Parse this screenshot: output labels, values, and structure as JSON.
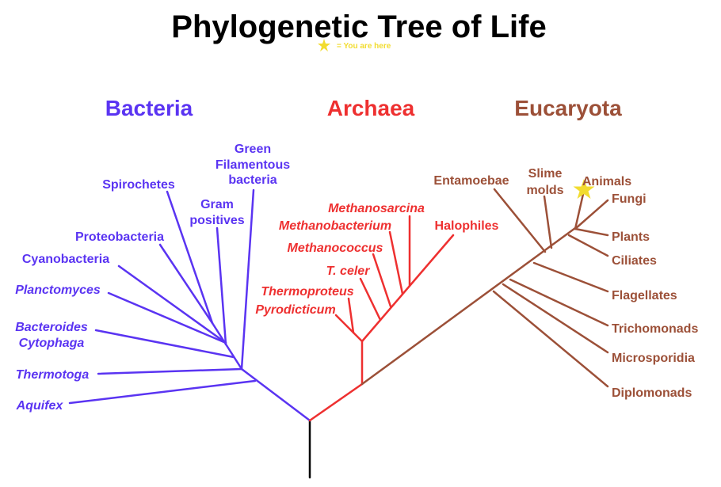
{
  "title": "Phylogenetic Tree of Life",
  "legend": {
    "icon": "star-icon",
    "text": "= You are here"
  },
  "colors": {
    "bacteria": "#5a34f2",
    "archaea": "#ee3030",
    "eucaryota": "#9c5038",
    "root": "#000000",
    "star": "#f2dc30"
  },
  "domains": {
    "bacteria": {
      "label": "Bacteria",
      "taxa": [
        "Spirochetes",
        "Green",
        "Filamentous",
        "bacteria",
        "Gram",
        "positives",
        "Proteobacteria",
        "Cyanobacteria",
        "Planctomyces",
        "Bacteroides",
        "Cytophaga",
        "Thermotoga",
        "Aquifex"
      ]
    },
    "archaea": {
      "label": "Archaea",
      "taxa": [
        "Methanosarcina",
        "Methanobacterium",
        "Methanococcus",
        "T. celer",
        "Thermoproteus",
        "Pyrodicticum",
        "Halophiles"
      ]
    },
    "eucaryota": {
      "label": "Eucaryota",
      "taxa": [
        "Entamoebae",
        "Slime",
        "molds",
        "Animals",
        "Fungi",
        "Plants",
        "Ciliates",
        "Flagellates",
        "Trichomonads",
        "Microsporidia",
        "Diplomonads"
      ]
    }
  }
}
